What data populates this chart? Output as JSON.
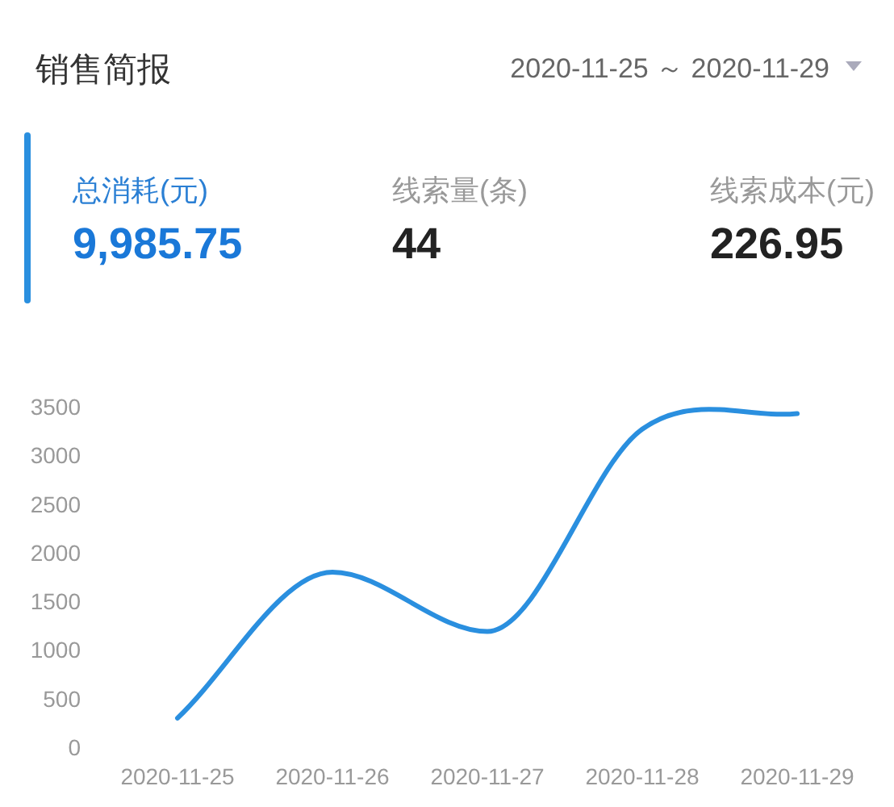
{
  "chart_data": [
    {
      "type": "other",
      "title": "销售简报",
      "subtitle": "2020-11-25 ～ 2020-11-29",
      "annotations": [
        "总消耗(元)",
        "9,985.75",
        "线索量(条)",
        "44",
        "线索成本(元)",
        "226.95"
      ]
    },
    {
      "type": "line",
      "categories": [
        "2020-11-25",
        "2020-11-26",
        "2020-11-27",
        "2020-11-28",
        "2020-11-29"
      ],
      "series": [
        {
          "color": "#2a8fdf",
          "values": [
            300,
            1800,
            1190,
            3270,
            3430
          ]
        }
      ],
      "ylim": [
        0,
        3500
      ],
      "yticks": [
        0,
        500,
        1000,
        1500,
        2000,
        2500,
        3000,
        3500
      ],
      "grid": false,
      "marker": "none",
      "line_style": "solid"
    }
  ]
}
